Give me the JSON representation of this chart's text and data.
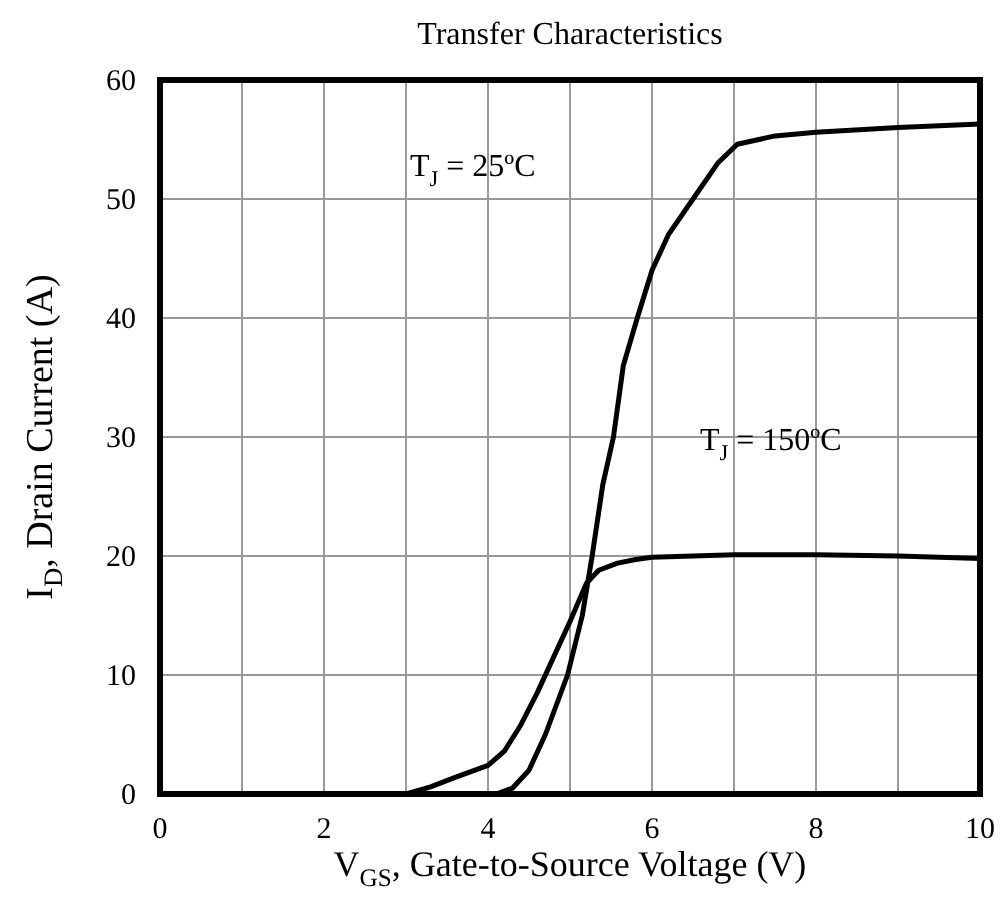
{
  "chart_data": {
    "type": "line",
    "title": "Transfer Characteristics",
    "xlabel": "V$_{GS}$, Gate-to-Source Voltage (V)",
    "ylabel": "I$_{D}$, Drain Current (A)",
    "xlim": [
      0,
      10
    ],
    "ylim": [
      0,
      60
    ],
    "xticks": [
      0,
      {
        "value": 1,
        "label": null
      },
      2,
      {
        "value": 3,
        "label": null
      },
      4,
      {
        "value": 5,
        "label": null
      },
      6,
      {
        "value": 7,
        "label": null
      },
      8,
      {
        "value": 9,
        "label": null
      },
      10
    ],
    "yticks": [
      0,
      10,
      20,
      30,
      40,
      50,
      60
    ],
    "grid": true,
    "marker": "none",
    "line_style": "solid",
    "series": [
      {
        "color": "#000000",
        "x": [
          4.1,
          4.3,
          4.5,
          4.7,
          4.97,
          5.15,
          5.27,
          5.4,
          5.53,
          5.65,
          5.82,
          6.0,
          6.2,
          6.5,
          6.8,
          7.04,
          7.5,
          8,
          9,
          10
        ],
        "values": [
          0,
          0.5,
          2,
          5,
          10,
          15,
          20,
          26,
          30,
          36,
          40,
          44,
          47,
          50,
          53,
          54.6,
          55.3,
          55.6,
          56,
          56.3
        ]
      },
      {
        "color": "#000000",
        "x": [
          3.0,
          3.3,
          3.6,
          4.0,
          4.2,
          4.4,
          4.6,
          4.8,
          5.0,
          5.2,
          5.35,
          5.58,
          5.8,
          6.0,
          7,
          8,
          9,
          10
        ],
        "values": [
          0,
          0.6,
          1.4,
          2.4,
          3.6,
          5.8,
          8.5,
          11.5,
          14.5,
          17.7,
          18.8,
          19.4,
          19.7,
          19.9,
          20.1,
          20.1,
          20,
          19.8
        ]
      }
    ],
    "annotations": [
      "T$_{J}$ = 25ºC",
      "T$_{J}$ = 150ºC"
    ]
  }
}
